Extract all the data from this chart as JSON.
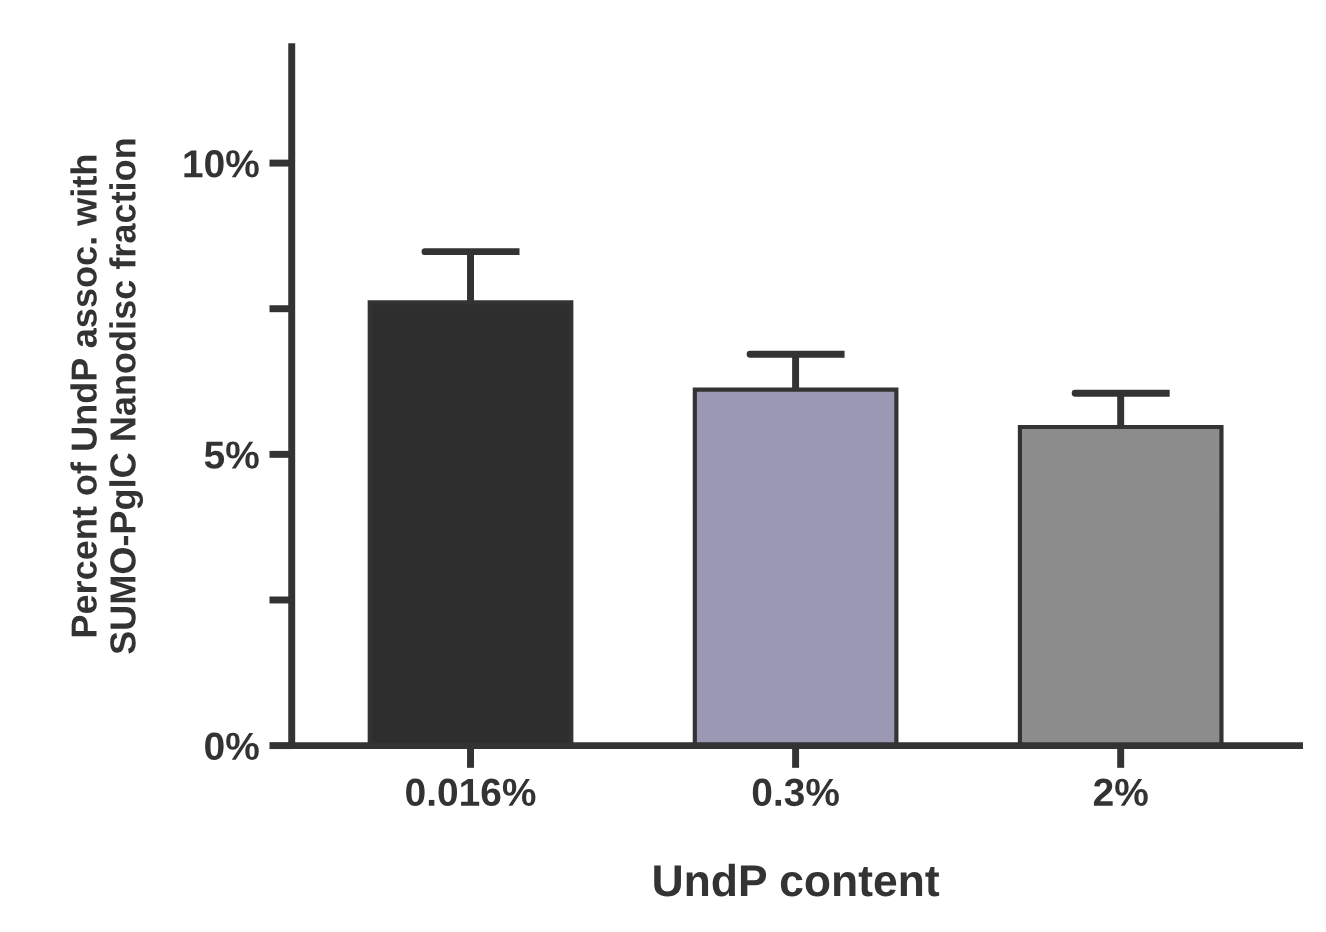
{
  "chart_data": {
    "type": "bar",
    "xlabel": "UndP content",
    "ylabel": "Percent of UndP assoc. with\nSUMO-PglC Nanodisc fraction",
    "categories": [
      "0.016%",
      "0.3%",
      "2%"
    ],
    "values": [
      7.61,
      6.11,
      5.47
    ],
    "errors": [
      0.87,
      0.61,
      0.58
    ],
    "colors": [
      "#2e2e2e",
      "#9a98b2",
      "#8c8c8c"
    ],
    "ylim": [
      0,
      12
    ],
    "yticks": [
      {
        "value": 0,
        "label": "0%"
      },
      {
        "value": 2.5,
        "label": null
      },
      {
        "value": 5,
        "label": "5%"
      },
      {
        "value": 7.5,
        "label": null
      },
      {
        "value": 10,
        "label": "10%"
      }
    ],
    "grid": false
  }
}
